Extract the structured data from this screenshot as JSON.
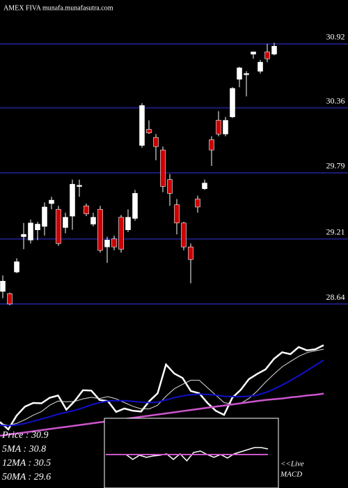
{
  "chart_data": [
    {
      "type": "candlestick",
      "title": "AMEX  FIVA munafa.munafasutra.com",
      "open": [
        28.75,
        28.73,
        28.92,
        29.23,
        29.2,
        29.29,
        29.32,
        29.52,
        29.47,
        29.31,
        29.41,
        29.67,
        29.5,
        29.34,
        29.47,
        29.14,
        29.21,
        29.4,
        29.29,
        29.39,
        30.03,
        30.17,
        30.1,
        29.99,
        29.73,
        29.51,
        29.35,
        29.14,
        29.56,
        29.65,
        30.08,
        30.25,
        30.13,
        30.28,
        30.61,
        30.65,
        30.83,
        30.68,
        30.85,
        30.83
      ],
      "high": [
        28.89,
        28.74,
        29.04,
        29.35,
        29.38,
        29.36,
        29.53,
        29.58,
        29.5,
        29.44,
        29.73,
        29.73,
        29.52,
        29.44,
        29.5,
        29.23,
        29.24,
        29.42,
        29.47,
        29.64,
        30.4,
        30.25,
        30.13,
        30.02,
        29.78,
        29.56,
        29.36,
        29.17,
        29.59,
        29.73,
        30.11,
        30.33,
        30.28,
        30.54,
        30.72,
        30.68,
        30.85,
        30.78,
        30.92,
        30.93
      ],
      "low": [
        28.69,
        28.63,
        28.91,
        29.12,
        29.17,
        29.2,
        29.24,
        29.47,
        29.15,
        29.26,
        29.29,
        29.58,
        29.41,
        29.32,
        29.09,
        29.0,
        29.11,
        29.09,
        29.27,
        29.37,
        30.01,
        30.13,
        29.9,
        29.62,
        29.5,
        29.25,
        29.11,
        28.82,
        29.44,
        29.64,
        29.85,
        30.11,
        30.11,
        30.27,
        30.54,
        30.46,
        30.79,
        30.66,
        30.76,
        30.82
      ],
      "close": [
        28.84,
        28.64,
        29.01,
        29.25,
        29.35,
        29.34,
        29.49,
        29.55,
        29.17,
        29.4,
        29.69,
        29.68,
        29.43,
        29.4,
        29.11,
        29.2,
        29.14,
        29.12,
        29.4,
        29.61,
        30.38,
        30.14,
        30.02,
        29.67,
        29.61,
        29.35,
        29.14,
        29.03,
        29.49,
        29.7,
        29.99,
        30.13,
        30.25,
        30.53,
        30.71,
        30.66,
        30.85,
        30.76,
        30.79,
        30.9
      ],
      "up_color": "#ffffff",
      "down_color": "#cc0000",
      "grid_color": "#1c1c78",
      "ylim": [
        28.585,
        31.305
      ],
      "yticks": [
        30.92,
        30.36,
        29.79,
        29.21,
        28.64
      ],
      "grid": true
    },
    {
      "type": "line",
      "ylim": [
        28.19,
        31.37
      ],
      "legend": [
        "Price : 30.9",
        "5MA : 30.8",
        "12MA : 30.5",
        "50MA : 29.6"
      ],
      "series": [
        {
          "name": "Price",
          "color": "#ffffff",
          "values": [
            28.84,
            28.64,
            29.01,
            29.25,
            29.35,
            29.34,
            29.49,
            29.55,
            29.17,
            29.4,
            29.69,
            29.68,
            29.43,
            29.4,
            29.11,
            29.2,
            29.14,
            29.12,
            29.4,
            29.61,
            30.38,
            30.14,
            30.02,
            29.67,
            29.61,
            29.35,
            29.14,
            29.03,
            29.49,
            29.7,
            29.99,
            30.13,
            30.25,
            30.53,
            30.71,
            30.66,
            30.85,
            30.76,
            30.79,
            30.9
          ]
        },
        {
          "name": "5MA",
          "color": "#dddddd",
          "values": [
            28.8,
            28.75,
            28.8,
            28.9,
            29.02,
            29.12,
            29.29,
            29.4,
            29.38,
            29.39,
            29.46,
            29.5,
            29.47,
            29.52,
            29.46,
            29.36,
            29.26,
            29.19,
            29.19,
            29.29,
            29.53,
            29.73,
            29.85,
            29.96,
            29.96,
            29.76,
            29.56,
            29.36,
            29.32,
            29.34,
            29.47,
            29.67,
            29.91,
            30.12,
            30.32,
            30.46,
            30.6,
            30.7,
            30.75,
            30.79
          ]
        },
        {
          "name": "12MA",
          "color": "#1010cc",
          "values": [
            28.75,
            28.74,
            28.76,
            28.8,
            28.86,
            28.92,
            28.98,
            29.05,
            29.1,
            29.15,
            29.22,
            29.3,
            29.36,
            29.4,
            29.41,
            29.41,
            29.39,
            29.37,
            29.36,
            29.37,
            29.43,
            29.49,
            29.54,
            29.57,
            29.59,
            29.58,
            29.56,
            29.53,
            29.52,
            29.52,
            29.53,
            29.56,
            29.63,
            29.72,
            29.83,
            29.95,
            30.08,
            30.22,
            30.36,
            30.5
          ]
        },
        {
          "name": "50MA",
          "color": "#cc55cc",
          "values": [
            28.47,
            28.5,
            28.53,
            28.56,
            28.59,
            28.62,
            28.65,
            28.68,
            28.71,
            28.74,
            28.77,
            28.8,
            28.83,
            28.86,
            28.89,
            28.92,
            28.95,
            28.98,
            29.01,
            29.04,
            29.07,
            29.1,
            29.13,
            29.16,
            29.19,
            29.22,
            29.25,
            29.28,
            29.31,
            29.34,
            29.37,
            29.4,
            29.43,
            29.45,
            29.47,
            29.5,
            29.52,
            29.55,
            29.57,
            29.6
          ]
        }
      ]
    },
    {
      "type": "macd",
      "label_lines": [
        "<<Live",
        "MACD"
      ],
      "ylim": [
        -1,
        1
      ],
      "series": [
        {
          "color": "#ffffff",
          "values": [
            0,
            0,
            0,
            0,
            -0.14,
            -0.02,
            -0.08,
            -0.04,
            -0.02,
            0.02,
            -0.14,
            0.02,
            -0.18,
            0.06,
            0.1,
            0,
            -0.08,
            0,
            -0.1,
            0.02,
            0.08,
            0.14,
            0.2,
            0.2,
            0.16
          ]
        },
        {
          "color": "#cc55cc",
          "values": [
            0,
            0,
            0,
            0,
            0,
            0,
            0,
            0,
            0,
            0,
            0,
            0,
            0,
            0,
            0,
            0,
            0,
            0,
            0,
            0,
            0,
            0,
            0,
            0,
            0
          ]
        }
      ]
    }
  ]
}
